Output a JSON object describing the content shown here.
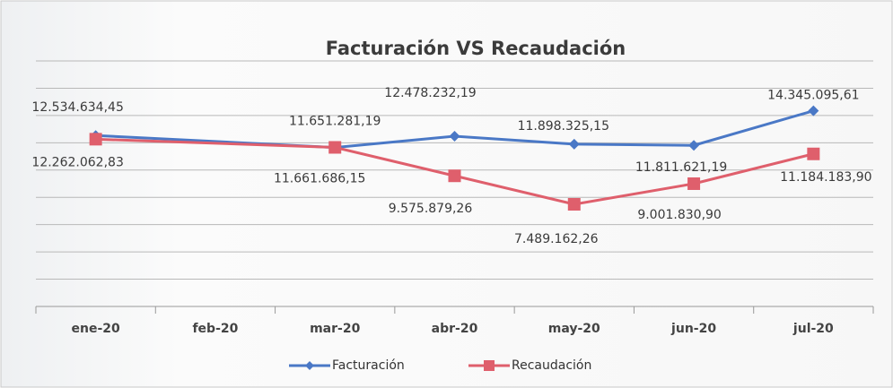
{
  "chart_data": {
    "type": "line",
    "title": "Facturación VS Recaudación",
    "categories": [
      "ene-20",
      "feb-20",
      "mar-20",
      "abr-20",
      "may-20",
      "jun-20",
      "jul-20"
    ],
    "series": [
      {
        "name": "Facturación",
        "color": "#4a78c6",
        "marker": "diamond",
        "values": [
          12534634.45,
          null,
          11651281.19,
          12478232.19,
          11898325.15,
          11811621.19,
          14345095.61
        ],
        "value_labels": [
          "12.534.634,45",
          null,
          "11.651.281,19",
          "12.478.232,19",
          "11.898.325,15",
          "11.811.621,19",
          "14.345.095,61"
        ]
      },
      {
        "name": "Recaudación",
        "color": "#df5f6c",
        "marker": "square",
        "values": [
          12262062.83,
          null,
          11661686.15,
          9575879.26,
          7489162.26,
          9001830.9,
          11184183.9
        ],
        "value_labels": [
          "12.262.062,83",
          null,
          "11.661.686,15",
          "9.575.879,26",
          "7.489.162,26",
          "9.001.830,90",
          "11.184.183,90"
        ]
      }
    ],
    "ylim": [
      0,
      18000000
    ],
    "yticks": [
      0,
      2000000,
      4000000,
      6000000,
      8000000,
      10000000,
      12000000,
      14000000,
      16000000,
      18000000
    ],
    "grid": true,
    "legend": "bottom"
  }
}
